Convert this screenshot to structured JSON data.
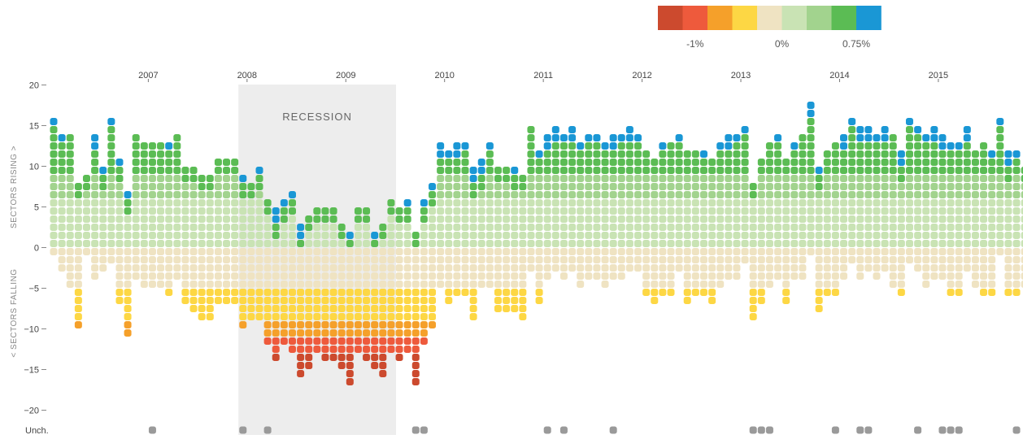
{
  "chart_data": {
    "type": "dot-column",
    "x_start": "2006-01",
    "x_labels": [
      "2007",
      "2008",
      "2009",
      "2010",
      "2011",
      "2012",
      "2013",
      "2014",
      "2015"
    ],
    "y_ticks": [
      20,
      15,
      10,
      5,
      0,
      -5,
      -10,
      -15,
      -20
    ],
    "ylim": [
      -20,
      20
    ],
    "ylabel_rising": "SECTORS RISING >",
    "ylabel_falling": "< SECTORS FALLING",
    "unchanged_label": "Unch.",
    "annotation": {
      "label": "RECESSION",
      "start": "2007-12",
      "end": "2009-06"
    },
    "legend": {
      "colors": [
        "#cc4a2e",
        "#ee5a3c",
        "#f5a02a",
        "#fdd744",
        "#efe3c2",
        "#c9e3b4",
        "#a2d38e",
        "#5bbc54",
        "#1a97d5"
      ],
      "labels": [
        "-1%",
        "0%",
        "0.75%"
      ],
      "label_positions": [
        1.5,
        5,
        8
      ]
    },
    "color_scale": {
      "rising": [
        "#c9e3b4",
        "#a2d38e",
        "#5bbc54",
        "#1a97d5"
      ],
      "falling": [
        "#efe3c2",
        "#fdd744",
        "#f5a02a",
        "#ee5a3c",
        "#cc4a2e"
      ]
    },
    "months": [
      [
        16,
        1,
        0
      ],
      [
        14,
        3,
        0
      ],
      [
        14,
        5,
        0
      ],
      [
        8,
        10,
        0
      ],
      [
        9,
        1,
        0
      ],
      [
        14,
        4,
        0
      ],
      [
        10,
        3,
        0
      ],
      [
        16,
        2,
        0
      ],
      [
        11,
        7,
        0
      ],
      [
        7,
        11,
        0
      ],
      [
        14,
        4,
        0
      ],
      [
        13,
        5,
        0
      ],
      [
        13,
        5,
        1
      ],
      [
        13,
        5,
        0
      ],
      [
        13,
        6,
        0
      ],
      [
        14,
        4,
        0
      ],
      [
        10,
        7,
        0
      ],
      [
        10,
        8,
        0
      ],
      [
        9,
        9,
        0
      ],
      [
        9,
        9,
        0
      ],
      [
        11,
        7,
        0
      ],
      [
        11,
        7,
        0
      ],
      [
        11,
        7,
        0
      ],
      [
        9,
        10,
        1
      ],
      [
        8,
        9,
        0
      ],
      [
        10,
        9,
        0
      ],
      [
        6,
        12,
        1
      ],
      [
        5,
        14,
        0
      ],
      [
        6,
        12,
        0
      ],
      [
        7,
        13,
        0
      ],
      [
        3,
        16,
        0
      ],
      [
        4,
        15,
        0
      ],
      [
        5,
        13,
        0
      ],
      [
        5,
        14,
        0
      ],
      [
        5,
        14,
        0
      ],
      [
        3,
        15,
        0
      ],
      [
        2,
        17,
        0
      ],
      [
        5,
        13,
        0
      ],
      [
        5,
        14,
        0
      ],
      [
        2,
        15,
        0
      ],
      [
        3,
        16,
        0
      ],
      [
        6,
        13,
        0
      ],
      [
        5,
        14,
        0
      ],
      [
        6,
        13,
        0
      ],
      [
        2,
        17,
        1
      ],
      [
        6,
        12,
        1
      ],
      [
        8,
        10,
        0
      ],
      [
        13,
        5,
        0
      ],
      [
        12,
        7,
        0
      ],
      [
        13,
        6,
        0
      ],
      [
        13,
        6,
        0
      ],
      [
        10,
        9,
        0
      ],
      [
        11,
        5,
        0
      ],
      [
        13,
        5,
        0
      ],
      [
        10,
        8,
        0
      ],
      [
        10,
        8,
        0
      ],
      [
        10,
        8,
        0
      ],
      [
        9,
        9,
        0
      ],
      [
        15,
        3,
        0
      ],
      [
        12,
        7,
        0
      ],
      [
        14,
        4,
        1
      ],
      [
        15,
        3,
        0
      ],
      [
        14,
        4,
        1
      ],
      [
        15,
        3,
        0
      ],
      [
        13,
        5,
        0
      ],
      [
        14,
        4,
        0
      ],
      [
        14,
        4,
        0
      ],
      [
        13,
        5,
        0
      ],
      [
        14,
        4,
        1
      ],
      [
        14,
        4,
        0
      ],
      [
        15,
        3,
        0
      ],
      [
        14,
        3,
        0
      ],
      [
        12,
        6,
        0
      ],
      [
        11,
        7,
        0
      ],
      [
        13,
        6,
        0
      ],
      [
        13,
        6,
        0
      ],
      [
        14,
        3,
        0
      ],
      [
        12,
        7,
        0
      ],
      [
        12,
        6,
        0
      ],
      [
        12,
        6,
        0
      ],
      [
        11,
        7,
        0
      ],
      [
        13,
        5,
        0
      ],
      [
        14,
        4,
        0
      ],
      [
        14,
        4,
        0
      ],
      [
        15,
        2,
        0
      ],
      [
        8,
        9,
        1
      ],
      [
        11,
        7,
        1
      ],
      [
        13,
        5,
        1
      ],
      [
        14,
        4,
        0
      ],
      [
        11,
        7,
        0
      ],
      [
        13,
        4,
        0
      ],
      [
        14,
        4,
        0
      ],
      [
        18,
        1,
        0
      ],
      [
        10,
        8,
        0
      ],
      [
        12,
        6,
        0
      ],
      [
        13,
        6,
        1
      ],
      [
        14,
        4,
        0
      ],
      [
        16,
        2,
        0
      ],
      [
        15,
        4,
        1
      ],
      [
        15,
        3,
        1
      ],
      [
        14,
        4,
        0
      ],
      [
        15,
        3,
        0
      ],
      [
        14,
        5,
        0
      ],
      [
        12,
        6,
        0
      ],
      [
        16,
        2,
        0
      ],
      [
        15,
        3,
        1
      ],
      [
        14,
        5,
        0
      ],
      [
        15,
        4,
        0
      ],
      [
        14,
        4,
        1
      ],
      [
        13,
        6,
        1
      ],
      [
        13,
        6,
        1
      ],
      [
        15,
        3,
        0
      ],
      [
        12,
        5,
        0
      ],
      [
        13,
        6,
        0
      ],
      [
        12,
        6,
        0
      ],
      [
        16,
        1,
        0
      ],
      [
        12,
        6,
        0
      ],
      [
        12,
        6,
        1
      ],
      [
        10,
        5,
        0
      ],
      [
        10,
        5,
        0
      ],
      [
        10,
        7,
        1
      ]
    ],
    "up_top": [
      1,
      1,
      0,
      0,
      0,
      2,
      1,
      1,
      1,
      1,
      0,
      0,
      0,
      0,
      1,
      0,
      0,
      0,
      0,
      0,
      0,
      0,
      0,
      1,
      0,
      1,
      0,
      2,
      1,
      1,
      2,
      0,
      0,
      0,
      0,
      0,
      1,
      0,
      0,
      1,
      0,
      0,
      0,
      1,
      0,
      1,
      1,
      2,
      1,
      2,
      1,
      2,
      2,
      1,
      0,
      0,
      1,
      0,
      0,
      1,
      2,
      2,
      1,
      2,
      1,
      1,
      1,
      1,
      2,
      1,
      2,
      1,
      0,
      0,
      1,
      0,
      1,
      0,
      0,
      1,
      0,
      1,
      2,
      1,
      1,
      0,
      0,
      0,
      1,
      0,
      1,
      0,
      2,
      1,
      0,
      0,
      2,
      1,
      2,
      2,
      1,
      2,
      0,
      2,
      1,
      1,
      1,
      2,
      2,
      1,
      1,
      2,
      0,
      0,
      1,
      1,
      2,
      1,
      0,
      0,
      0
    ]
  }
}
